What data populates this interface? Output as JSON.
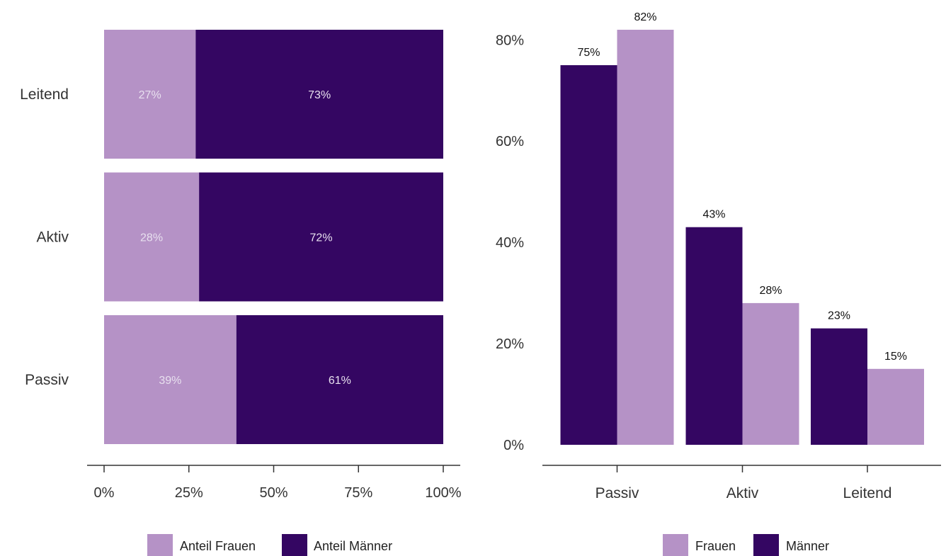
{
  "colors": {
    "frauen": "#b592c6",
    "maenner": "#340662",
    "axis": "#333333"
  },
  "chart_data": [
    {
      "type": "bar",
      "orientation": "horizontal",
      "stacked": true,
      "categories": [
        "Leitend",
        "Aktiv",
        "Passiv"
      ],
      "series": [
        {
          "name": "Anteil Frauen",
          "values": [
            27,
            28,
            39
          ],
          "labels": [
            "27%",
            "28%",
            "39%"
          ]
        },
        {
          "name": "Anteil Männer",
          "values": [
            73,
            72,
            61
          ],
          "labels": [
            "73%",
            "72%",
            "61%"
          ]
        }
      ],
      "xlim": [
        0,
        100
      ],
      "xticks": [
        0,
        25,
        50,
        75,
        100
      ],
      "xtick_labels": [
        "0%",
        "25%",
        "50%",
        "75%",
        "100%"
      ],
      "legend_position": "bottom",
      "grid": false
    },
    {
      "type": "bar",
      "orientation": "vertical",
      "stacked": false,
      "categories": [
        "Passiv",
        "Aktiv",
        "Leitend"
      ],
      "series": [
        {
          "name": "Männer",
          "values": [
            75,
            43,
            23
          ],
          "labels": [
            "75%",
            "43%",
            "23%"
          ]
        },
        {
          "name": "Frauen",
          "values": [
            82,
            28,
            15
          ],
          "labels": [
            "82%",
            "28%",
            "15%"
          ]
        }
      ],
      "legend_order": [
        "Frauen",
        "Männer"
      ],
      "ylim": [
        0,
        82
      ],
      "yticks": [
        0,
        20,
        40,
        60,
        80
      ],
      "ytick_labels": [
        "0%",
        "20%",
        "40%",
        "60%",
        "80%"
      ],
      "legend_position": "bottom",
      "grid": false
    }
  ]
}
